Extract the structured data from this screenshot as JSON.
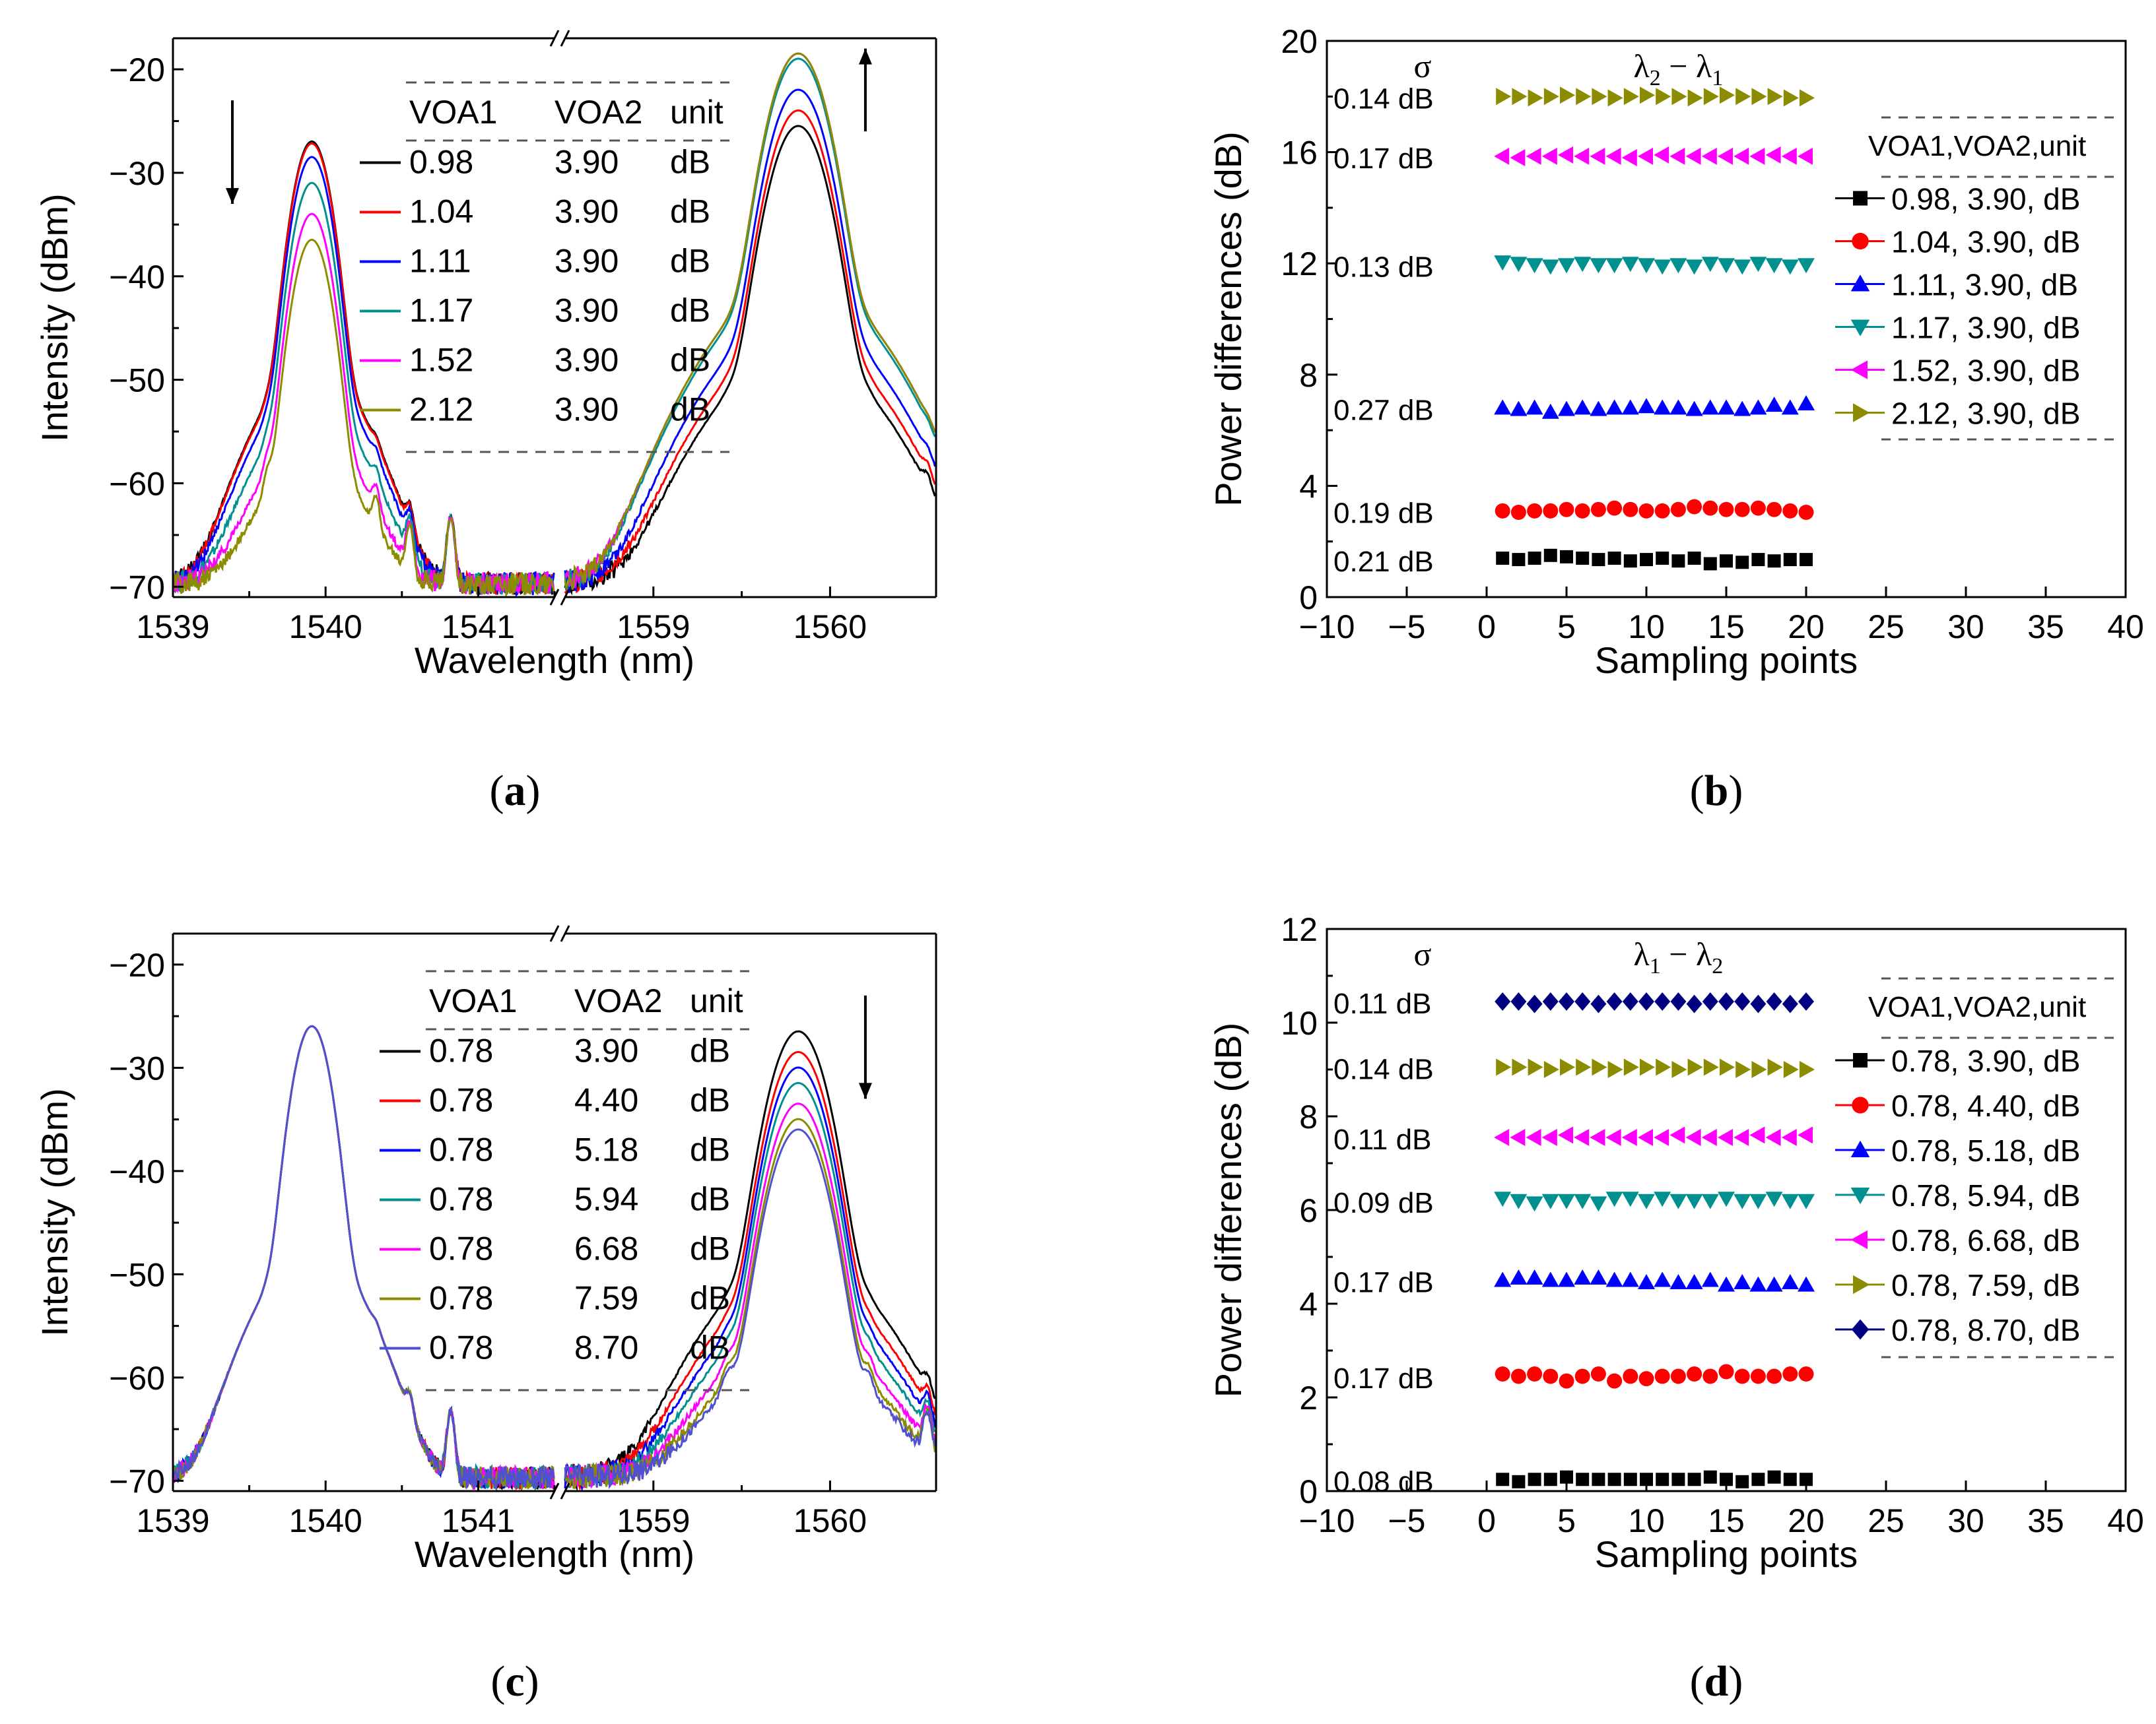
{
  "figure": {
    "colors": {
      "s1": "#000000",
      "s2": "#ff0000",
      "s3": "#0000ff",
      "s4": "#009090",
      "s5": "#ff00ff",
      "s6": "#8c8c00",
      "s7": "#000080"
    }
  },
  "chart_data": [
    {
      "panel": "(a)",
      "type": "line",
      "xlabel": "Wavelength (nm)",
      "ylabel": "Intensity (dBm)",
      "ylim": [
        -71,
        -17
      ],
      "yticks": [
        "−20",
        "−30",
        "−40",
        "−50",
        "−60",
        "−70"
      ],
      "ytick_values": [
        -20,
        -30,
        -40,
        -50,
        -60,
        -70
      ],
      "broken_x_axis": true,
      "xlim_left": [
        1539,
        1541.5
      ],
      "xlim_right": [
        1558.5,
        1560.6
      ],
      "xticks_left": [
        "1539",
        "1540",
        "1541"
      ],
      "xticks_left_values": [
        1539,
        1540,
        1541
      ],
      "xticks_right": [
        "1559",
        "1560"
      ],
      "xticks_right_values": [
        1559,
        1560
      ],
      "legend_headers": [
        "VOA1",
        "VOA2",
        "unit"
      ],
      "series": [
        {
          "name": "0.98",
          "voa1": "0.98",
          "voa2": "3.90",
          "unit": "dB",
          "peak1": -27,
          "peak2": -25.5,
          "color": "#000000"
        },
        {
          "name": "1.04",
          "voa1": "1.04",
          "voa2": "3.90",
          "unit": "dB",
          "peak1": -27.2,
          "peak2": -24,
          "color": "#ff0000"
        },
        {
          "name": "1.11",
          "voa1": "1.11",
          "voa2": "3.90",
          "unit": "dB",
          "peak1": -28.5,
          "peak2": -22,
          "color": "#0000ff"
        },
        {
          "name": "1.17",
          "voa1": "1.17",
          "voa2": "3.90",
          "unit": "dB",
          "peak1": -31,
          "peak2": -19,
          "color": "#009090"
        },
        {
          "name": "1.52",
          "voa1": "1.52",
          "voa2": "3.90",
          "unit": "dB",
          "peak1": -34,
          "peak2": -18.5,
          "color": "#ff00ff"
        },
        {
          "name": "2.12",
          "voa1": "2.12",
          "voa2": "3.90",
          "unit": "dB",
          "peak1": -36.5,
          "peak2": -18.5,
          "color": "#8c8c00"
        }
      ],
      "arrows": [
        {
          "dir": "down",
          "lambda": "left"
        },
        {
          "dir": "up",
          "lambda": "right"
        }
      ]
    },
    {
      "panel": "(b)",
      "type": "scatter",
      "xlabel": "Sampling points",
      "ylabel": "Power differences (dB)",
      "xlim": [
        -10,
        40
      ],
      "ylim": [
        0,
        20
      ],
      "xticks": [
        "−10",
        "−5",
        "0",
        "5",
        "10",
        "15",
        "20",
        "25",
        "30",
        "35",
        "40"
      ],
      "xtick_values": [
        -10,
        -5,
        0,
        5,
        10,
        15,
        20,
        25,
        30,
        35,
        40
      ],
      "yticks": [
        "0",
        "4",
        "8",
        "12",
        "16",
        "20"
      ],
      "ytick_values": [
        0,
        4,
        8,
        12,
        16,
        20
      ],
      "sigma_label": "σ",
      "annotation_prefix": "λ",
      "annotation_sub1": "2",
      "annotation_mid": " − λ",
      "annotation_sub2": "1",
      "legend_header": "VOA1,VOA2,unit",
      "series": [
        {
          "name": "0.98, 3.90, dB",
          "mean": 1.35,
          "sigma": "0.21 dB",
          "marker": "square",
          "color": "#000000",
          "values": [
            1.4,
            1.35,
            1.4,
            1.5,
            1.45,
            1.4,
            1.35,
            1.4,
            1.3,
            1.35,
            1.4,
            1.3,
            1.4,
            1.2,
            1.3,
            1.25,
            1.35,
            1.3,
            1.35,
            1.35
          ]
        },
        {
          "name": "1.04, 3.90, dB",
          "mean": 3.1,
          "sigma": "0.19 dB",
          "marker": "circle",
          "color": "#ff0000",
          "values": [
            3.1,
            3.05,
            3.1,
            3.1,
            3.15,
            3.1,
            3.15,
            3.2,
            3.15,
            3.1,
            3.1,
            3.15,
            3.25,
            3.2,
            3.15,
            3.15,
            3.2,
            3.15,
            3.1,
            3.05
          ]
        },
        {
          "name": "1.11, 3.90, dB",
          "mean": 6.8,
          "sigma": "0.27 dB",
          "marker": "triangle-up",
          "color": "#0000ff",
          "values": [
            6.8,
            6.75,
            6.8,
            6.65,
            6.75,
            6.8,
            6.75,
            6.8,
            6.8,
            6.85,
            6.8,
            6.8,
            6.75,
            6.8,
            6.8,
            6.75,
            6.8,
            6.9,
            6.8,
            6.95
          ]
        },
        {
          "name": "1.17, 3.90, dB",
          "mean": 11.95,
          "sigma": "0.13 dB",
          "marker": "triangle-down",
          "color": "#009090",
          "values": [
            12.05,
            12.0,
            11.95,
            11.9,
            11.95,
            12.0,
            11.95,
            11.95,
            12.0,
            11.95,
            11.9,
            11.95,
            11.9,
            12.0,
            11.95,
            11.9,
            12.0,
            11.95,
            11.9,
            11.95
          ]
        },
        {
          "name": "1.52, 3.90, dB",
          "mean": 15.85,
          "sigma": "0.17 dB",
          "marker": "triangle-left",
          "color": "#ff00ff",
          "values": [
            15.85,
            15.8,
            15.85,
            15.85,
            15.9,
            15.85,
            15.85,
            15.85,
            15.8,
            15.85,
            15.9,
            15.85,
            15.85,
            15.85,
            15.85,
            15.85,
            15.85,
            15.9,
            15.85,
            15.85
          ]
        },
        {
          "name": "2.12, 3.90, dB",
          "mean": 18.0,
          "sigma": "0.14 dB",
          "marker": "triangle-right",
          "color": "#8c8c00",
          "values": [
            18.0,
            18.0,
            17.95,
            18.0,
            18.05,
            18.0,
            18.0,
            17.95,
            18.0,
            18.05,
            18.0,
            18.0,
            17.95,
            18.0,
            18.05,
            18.0,
            18.0,
            18.0,
            17.95,
            17.95
          ]
        }
      ]
    },
    {
      "panel": "(c)",
      "type": "line",
      "xlabel": "Wavelength (nm)",
      "ylabel": "Intensity (dBm)",
      "ylim": [
        -71,
        -17
      ],
      "yticks": [
        "−20",
        "−30",
        "−40",
        "−50",
        "−60",
        "−70"
      ],
      "ytick_values": [
        -20,
        -30,
        -40,
        -50,
        -60,
        -70
      ],
      "broken_x_axis": true,
      "xlim_left": [
        1539,
        1541.5
      ],
      "xlim_right": [
        1558.5,
        1560.6
      ],
      "xticks_left": [
        "1539",
        "1540",
        "1541"
      ],
      "xticks_left_values": [
        1539,
        1540,
        1541
      ],
      "xticks_right": [
        "1559",
        "1560"
      ],
      "xticks_right_values": [
        1559,
        1560
      ],
      "legend_headers": [
        "VOA1",
        "VOA2",
        "unit"
      ],
      "series": [
        {
          "name": "3.90",
          "voa1": "0.78",
          "voa2": "3.90",
          "unit": "dB",
          "peak1": -26,
          "peak2": -26.5,
          "color": "#000000"
        },
        {
          "name": "4.40",
          "voa1": "0.78",
          "voa2": "4.40",
          "unit": "dB",
          "peak1": -26,
          "peak2": -28.5,
          "color": "#ff0000"
        },
        {
          "name": "5.18",
          "voa1": "0.78",
          "voa2": "5.18",
          "unit": "dB",
          "peak1": -26,
          "peak2": -30,
          "color": "#0000ff"
        },
        {
          "name": "5.94",
          "voa1": "0.78",
          "voa2": "5.94",
          "unit": "dB",
          "peak1": -26,
          "peak2": -31.5,
          "color": "#009090"
        },
        {
          "name": "6.68",
          "voa1": "0.78",
          "voa2": "6.68",
          "unit": "dB",
          "peak1": -26,
          "peak2": -33.5,
          "color": "#ff00ff"
        },
        {
          "name": "7.59",
          "voa1": "0.78",
          "voa2": "7.59",
          "unit": "dB",
          "peak1": -26,
          "peak2": -35,
          "color": "#8c8c00"
        },
        {
          "name": "8.70",
          "voa1": "0.78",
          "voa2": "8.70",
          "unit": "dB",
          "peak1": -26,
          "peak2": -36,
          "color": "#5050d0"
        }
      ],
      "arrows": [
        {
          "dir": "down",
          "lambda": "right"
        }
      ]
    },
    {
      "panel": "(d)",
      "type": "scatter",
      "xlabel": "Sampling points",
      "ylabel": "Power differences (dB)",
      "xlim": [
        -10,
        40
      ],
      "ylim": [
        0,
        12
      ],
      "xticks": [
        "−10",
        "−5",
        "0",
        "5",
        "10",
        "15",
        "20",
        "25",
        "30",
        "35",
        "40"
      ],
      "xtick_values": [
        -10,
        -5,
        0,
        5,
        10,
        15,
        20,
        25,
        30,
        35,
        40
      ],
      "yticks": [
        "0",
        "2",
        "4",
        "6",
        "8",
        "10",
        "12"
      ],
      "ytick_values": [
        0,
        2,
        4,
        6,
        8,
        10,
        12
      ],
      "sigma_label": "σ",
      "annotation_prefix": "λ",
      "annotation_sub1": "1",
      "annotation_mid": " − λ",
      "annotation_sub2": "2",
      "legend_header": "VOA1,VOA2,unit",
      "series": [
        {
          "name": "0.78, 3.90, dB",
          "mean": 0.25,
          "sigma": "0.08 dB",
          "marker": "square",
          "color": "#000000",
          "values": [
            0.25,
            0.2,
            0.25,
            0.25,
            0.3,
            0.25,
            0.25,
            0.25,
            0.25,
            0.25,
            0.25,
            0.25,
            0.25,
            0.3,
            0.25,
            0.2,
            0.25,
            0.3,
            0.25,
            0.25
          ]
        },
        {
          "name": "0.78, 4.40, dB",
          "mean": 2.45,
          "sigma": "0.17 dB",
          "marker": "circle",
          "color": "#ff0000",
          "values": [
            2.5,
            2.45,
            2.5,
            2.45,
            2.35,
            2.45,
            2.5,
            2.35,
            2.45,
            2.4,
            2.45,
            2.45,
            2.5,
            2.45,
            2.55,
            2.45,
            2.45,
            2.45,
            2.5,
            2.5
          ]
        },
        {
          "name": "0.78, 5.18, dB",
          "mean": 4.5,
          "sigma": "0.17 dB",
          "marker": "triangle-up",
          "color": "#0000ff",
          "values": [
            4.5,
            4.55,
            4.55,
            4.5,
            4.5,
            4.55,
            4.55,
            4.5,
            4.5,
            4.45,
            4.5,
            4.45,
            4.45,
            4.5,
            4.4,
            4.45,
            4.4,
            4.4,
            4.45,
            4.4
          ]
        },
        {
          "name": "0.78, 5.94, dB",
          "mean": 6.2,
          "sigma": "0.09 dB",
          "marker": "triangle-down",
          "color": "#009090",
          "values": [
            6.25,
            6.2,
            6.15,
            6.2,
            6.2,
            6.2,
            6.15,
            6.25,
            6.25,
            6.2,
            6.25,
            6.2,
            6.2,
            6.2,
            6.25,
            6.2,
            6.2,
            6.25,
            6.2,
            6.2
          ]
        },
        {
          "name": "0.78, 6.68, dB",
          "mean": 7.55,
          "sigma": "0.11 dB",
          "marker": "triangle-left",
          "color": "#ff00ff",
          "values": [
            7.55,
            7.55,
            7.55,
            7.55,
            7.6,
            7.55,
            7.55,
            7.55,
            7.55,
            7.55,
            7.55,
            7.6,
            7.55,
            7.55,
            7.55,
            7.55,
            7.6,
            7.55,
            7.55,
            7.6
          ]
        },
        {
          "name": "0.78, 7.59, dB",
          "mean": 9.05,
          "sigma": "0.14 dB",
          "marker": "triangle-right",
          "color": "#8c8c00",
          "values": [
            9.05,
            9.05,
            9.05,
            9.0,
            9.05,
            9.05,
            9.05,
            9.0,
            9.05,
            9.05,
            9.05,
            9.0,
            9.05,
            9.05,
            9.05,
            9.0,
            9.0,
            9.05,
            9.0,
            9.0
          ]
        },
        {
          "name": "0.78, 8.70, dB",
          "mean": 10.45,
          "sigma": "0.11 dB",
          "marker": "diamond",
          "color": "#000080",
          "values": [
            10.45,
            10.45,
            10.4,
            10.45,
            10.45,
            10.45,
            10.4,
            10.45,
            10.45,
            10.45,
            10.45,
            10.45,
            10.4,
            10.45,
            10.45,
            10.45,
            10.4,
            10.45,
            10.4,
            10.45
          ]
        }
      ]
    }
  ]
}
